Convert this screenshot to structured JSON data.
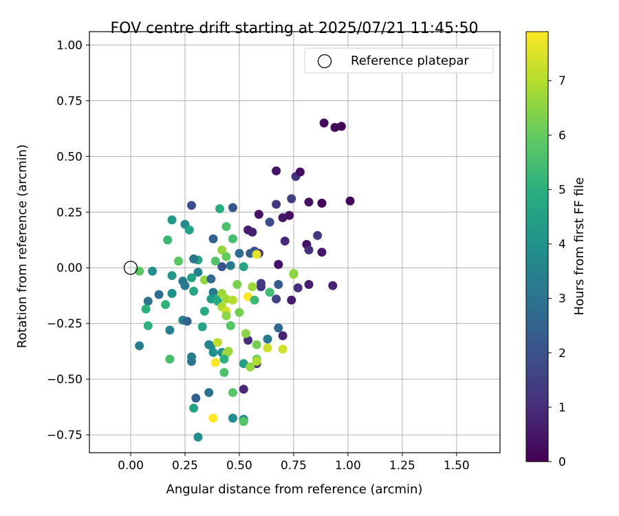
{
  "chart_data": {
    "type": "scatter",
    "title": "FOV centre drift starting at 2025/07/21 11:45:50",
    "xlabel": "Angular distance from reference (arcmin)",
    "ylabel": "Rotation from reference (arcmin)",
    "xlim": [
      -0.19,
      1.7
    ],
    "ylim": [
      -0.83,
      1.06
    ],
    "xticks": [
      0.0,
      0.25,
      0.5,
      0.75,
      1.0,
      1.25,
      1.5
    ],
    "xtick_labels": [
      "0.00",
      "0.25",
      "0.50",
      "0.75",
      "1.00",
      "1.25",
      "1.50"
    ],
    "yticks": [
      -0.75,
      -0.5,
      -0.25,
      0.0,
      0.25,
      0.5,
      0.75,
      1.0
    ],
    "ytick_labels": [
      "−0.75",
      "−0.50",
      "−0.25",
      "0.00",
      "0.25",
      "0.50",
      "0.75",
      "1.00"
    ],
    "grid": true,
    "legend": {
      "placement": "top-right",
      "entries": [
        "Reference platepar"
      ]
    },
    "reference_point": {
      "name": "Reference platepar",
      "x": 0.0,
      "y": 0.0
    },
    "colorbar": {
      "label": "Hours from first FF file",
      "colormap": "viridis",
      "range": [
        0,
        7.9
      ],
      "ticks": [
        0,
        1,
        2,
        3,
        4,
        5,
        6,
        7
      ],
      "tick_labels": [
        "0",
        "1",
        "2",
        "3",
        "4",
        "5",
        "6",
        "7"
      ]
    },
    "points": [
      [
        0.89,
        0.65,
        0.2
      ],
      [
        0.94,
        0.63,
        0.1
      ],
      [
        0.97,
        0.635,
        0.1
      ],
      [
        1.01,
        0.3,
        0.2
      ],
      [
        0.67,
        0.435,
        0.4
      ],
      [
        0.76,
        0.41,
        1.2
      ],
      [
        0.78,
        0.43,
        0.3
      ],
      [
        0.74,
        0.31,
        1.5
      ],
      [
        0.82,
        0.295,
        0.4
      ],
      [
        0.88,
        0.29,
        0.3
      ],
      [
        0.88,
        0.29,
        0.1
      ],
      [
        0.67,
        0.285,
        1.3
      ],
      [
        0.59,
        0.24,
        0.4
      ],
      [
        0.73,
        0.235,
        0.3
      ],
      [
        0.7,
        0.225,
        0.5
      ],
      [
        0.64,
        0.205,
        1.8
      ],
      [
        0.54,
        0.17,
        0.6
      ],
      [
        0.56,
        0.16,
        0.7
      ],
      [
        0.86,
        0.145,
        1.3
      ],
      [
        0.71,
        0.12,
        0.9
      ],
      [
        0.81,
        0.105,
        0.4
      ],
      [
        0.82,
        0.08,
        1.1
      ],
      [
        0.88,
        0.07,
        0.5
      ],
      [
        0.59,
        0.065,
        1.0
      ],
      [
        0.57,
        0.075,
        2.0
      ],
      [
        0.55,
        0.065,
        2.4
      ],
      [
        0.5,
        0.065,
        2.8
      ],
      [
        0.68,
        0.015,
        0.7
      ],
      [
        0.68,
        0.015,
        0.4
      ],
      [
        0.93,
        -0.08,
        0.8
      ],
      [
        0.82,
        -0.075,
        0.6
      ],
      [
        0.77,
        -0.09,
        1.1
      ],
      [
        0.74,
        -0.145,
        0.6
      ],
      [
        0.67,
        -0.14,
        1.6
      ],
      [
        0.68,
        -0.075,
        2.2
      ],
      [
        0.6,
        -0.07,
        1.4
      ],
      [
        0.6,
        -0.085,
        1.3
      ],
      [
        0.68,
        -0.27,
        2.7
      ],
      [
        0.7,
        -0.305,
        0.8
      ],
      [
        0.54,
        -0.325,
        1.0
      ],
      [
        0.58,
        -0.43,
        1.0
      ],
      [
        0.52,
        -0.545,
        0.9
      ],
      [
        0.28,
        0.28,
        1.9
      ],
      [
        0.47,
        0.27,
        2.1
      ],
      [
        0.41,
        0.265,
        4.9
      ],
      [
        0.25,
        0.195,
        3.7
      ],
      [
        0.44,
        0.185,
        5.6
      ],
      [
        0.27,
        0.17,
        4.5
      ],
      [
        0.17,
        0.125,
        5.3
      ],
      [
        0.38,
        0.13,
        2.4
      ],
      [
        0.47,
        0.13,
        5.5
      ],
      [
        0.19,
        0.215,
        4.2
      ],
      [
        0.42,
        0.08,
        6.6
      ],
      [
        0.44,
        0.05,
        6.0
      ],
      [
        0.46,
        0.01,
        3.2
      ],
      [
        0.42,
        0.005,
        2.0
      ],
      [
        0.31,
        0.035,
        4.6
      ],
      [
        0.29,
        0.04,
        3.0
      ],
      [
        0.22,
        0.03,
        5.5
      ],
      [
        0.22,
        0.03,
        5.9
      ],
      [
        0.39,
        0.03,
        5.7
      ],
      [
        0.58,
        0.06,
        7.6
      ],
      [
        0.52,
        0.005,
        4.6
      ],
      [
        0.04,
        -0.015,
        5.8
      ],
      [
        0.1,
        -0.015,
        3.9
      ],
      [
        0.19,
        -0.035,
        4.2
      ],
      [
        0.24,
        -0.06,
        3.1
      ],
      [
        0.25,
        -0.08,
        3.2
      ],
      [
        0.28,
        -0.045,
        4.5
      ],
      [
        0.31,
        -0.02,
        3.5
      ],
      [
        0.34,
        -0.055,
        6.6
      ],
      [
        0.37,
        -0.05,
        2.7
      ],
      [
        0.49,
        -0.075,
        6.3
      ],
      [
        0.56,
        -0.085,
        6.7
      ],
      [
        0.75,
        -0.03,
        6.9
      ],
      [
        0.75,
        -0.025,
        6.5
      ],
      [
        0.08,
        -0.15,
        3.0
      ],
      [
        0.13,
        -0.12,
        2.8
      ],
      [
        0.07,
        -0.185,
        5.0
      ],
      [
        0.16,
        -0.165,
        5.1
      ],
      [
        0.19,
        -0.115,
        3.5
      ],
      [
        0.19,
        -0.115,
        4.0
      ],
      [
        0.29,
        -0.105,
        4.6
      ],
      [
        0.38,
        -0.11,
        3.2
      ],
      [
        0.39,
        -0.14,
        4.9
      ],
      [
        0.37,
        -0.14,
        4.3
      ],
      [
        0.4,
        -0.15,
        4.8
      ],
      [
        0.42,
        -0.115,
        6.7
      ],
      [
        0.44,
        -0.14,
        6.8
      ],
      [
        0.47,
        -0.145,
        7.0
      ],
      [
        0.54,
        -0.13,
        7.9
      ],
      [
        0.57,
        -0.145,
        5.3
      ],
      [
        0.64,
        -0.11,
        5.4
      ],
      [
        0.42,
        -0.175,
        6.9
      ],
      [
        0.44,
        -0.195,
        7.4
      ],
      [
        0.44,
        -0.215,
        6.5
      ],
      [
        0.5,
        -0.2,
        6.2
      ],
      [
        0.46,
        -0.26,
        5.8
      ],
      [
        0.34,
        -0.195,
        4.8
      ],
      [
        0.24,
        -0.235,
        3.4
      ],
      [
        0.26,
        -0.24,
        2.5
      ],
      [
        0.08,
        -0.26,
        5.1
      ],
      [
        0.18,
        -0.28,
        3.4
      ],
      [
        0.33,
        -0.265,
        4.6
      ],
      [
        0.04,
        -0.35,
        3.3
      ],
      [
        0.36,
        -0.345,
        3.5
      ],
      [
        0.37,
        -0.35,
        3.6
      ],
      [
        0.4,
        -0.335,
        7.1
      ],
      [
        0.38,
        -0.38,
        4.0
      ],
      [
        0.42,
        -0.38,
        3.9
      ],
      [
        0.44,
        -0.385,
        6.7
      ],
      [
        0.45,
        -0.375,
        6.7
      ],
      [
        0.53,
        -0.295,
        6.5
      ],
      [
        0.58,
        -0.345,
        6.2
      ],
      [
        0.63,
        -0.32,
        3.2
      ],
      [
        0.63,
        -0.36,
        7.3
      ],
      [
        0.7,
        -0.365,
        7.3
      ],
      [
        0.18,
        -0.41,
        5.5
      ],
      [
        0.28,
        -0.42,
        3.0
      ],
      [
        0.28,
        -0.4,
        3.3
      ],
      [
        0.39,
        -0.425,
        7.8
      ],
      [
        0.43,
        -0.41,
        5.0
      ],
      [
        0.52,
        -0.43,
        4.3
      ],
      [
        0.55,
        -0.445,
        6.6
      ],
      [
        0.58,
        -0.41,
        6.1
      ],
      [
        0.58,
        -0.42,
        6.9
      ],
      [
        0.43,
        -0.47,
        5.6
      ],
      [
        0.3,
        -0.585,
        2.4
      ],
      [
        0.36,
        -0.56,
        2.9
      ],
      [
        0.47,
        -0.56,
        5.8
      ],
      [
        0.29,
        -0.63,
        4.5
      ],
      [
        0.38,
        -0.675,
        7.9
      ],
      [
        0.47,
        -0.675,
        3.8
      ],
      [
        0.52,
        -0.68,
        3.6
      ],
      [
        0.52,
        -0.69,
        5.8
      ],
      [
        0.31,
        -0.76,
        3.8
      ]
    ]
  }
}
